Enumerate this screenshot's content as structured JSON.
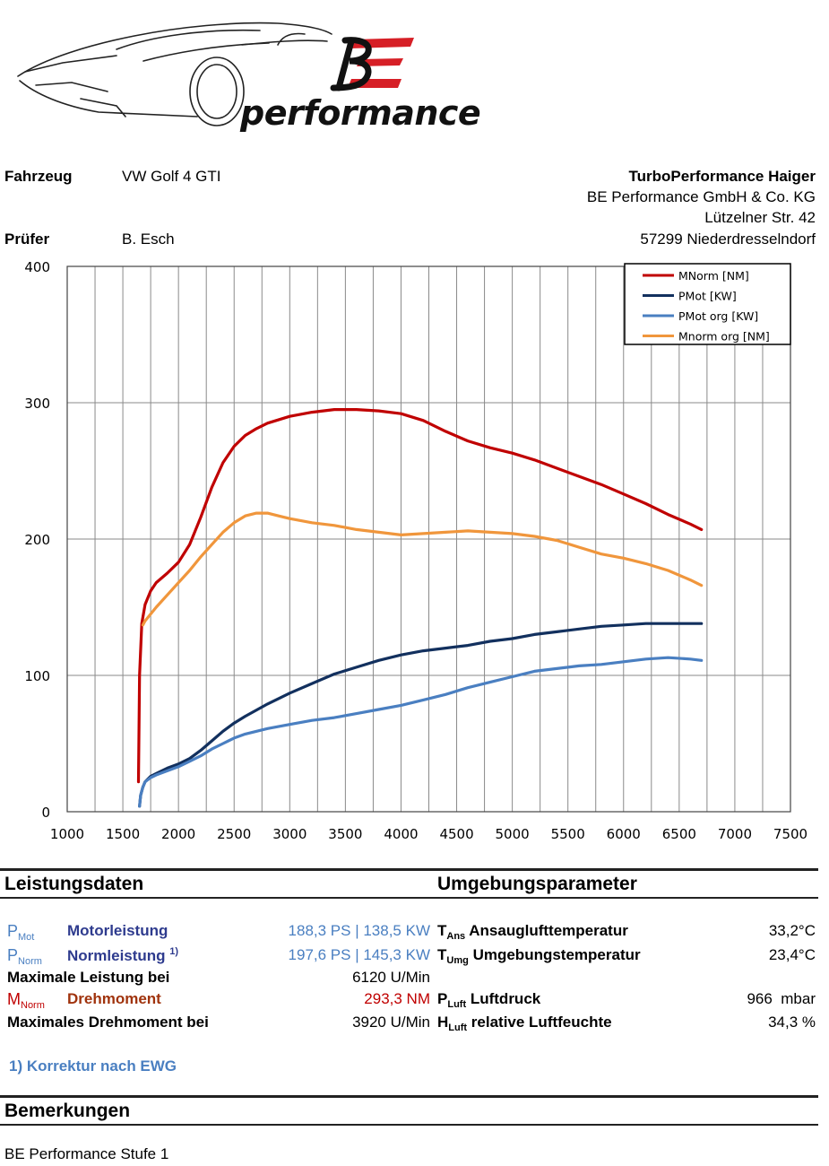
{
  "header": {
    "brand": "performance",
    "fahrzeug_label": "Fahrzeug",
    "fahrzeug_value": "VW Golf 4 GTI",
    "pruefer_label": "Prüfer",
    "pruefer_value": "B. Esch",
    "company_name": "TurboPerformance Haiger",
    "company_line2": "BE Performance GmbH & Co. KG",
    "company_line3": "Lützelner Str. 42",
    "company_line4": "57299 Niederdresselndorf"
  },
  "chart_data": {
    "type": "line",
    "xlim": [
      1000,
      7500
    ],
    "ylim": [
      0,
      400
    ],
    "x_ticks": [
      "1000",
      "1500",
      "2000",
      "2500",
      "3000",
      "3500",
      "4000",
      "4500",
      "5000",
      "5500",
      "6000",
      "6500",
      "7000",
      "7500"
    ],
    "y_ticks": [
      "0",
      "100",
      "200",
      "300",
      "400"
    ],
    "grid": true,
    "legend_position": "top-right",
    "series": [
      {
        "name": "MNorm [NM]",
        "color": "#c00000",
        "x": [
          1640,
          1650,
          1670,
          1700,
          1750,
          1800,
          1900,
          2000,
          2100,
          2200,
          2300,
          2400,
          2500,
          2600,
          2700,
          2800,
          3000,
          3200,
          3400,
          3600,
          3800,
          4000,
          4200,
          4400,
          4600,
          4800,
          5000,
          5200,
          5400,
          5600,
          5800,
          6000,
          6200,
          6400,
          6600,
          6700
        ],
        "y": [
          22,
          100,
          138,
          152,
          162,
          168,
          175,
          183,
          196,
          216,
          238,
          256,
          268,
          276,
          281,
          285,
          290,
          293,
          295,
          295,
          294,
          292,
          287,
          279,
          272,
          267,
          263,
          258,
          252,
          246,
          240,
          233,
          226,
          218,
          211,
          207
        ]
      },
      {
        "name": "PMot [KW]",
        "color": "#12305e",
        "x": [
          1650,
          1660,
          1680,
          1700,
          1750,
          1800,
          1900,
          2000,
          2100,
          2200,
          2300,
          2400,
          2500,
          2600,
          2800,
          3000,
          3200,
          3400,
          3600,
          3800,
          4000,
          4200,
          4400,
          4600,
          4800,
          5000,
          5200,
          5400,
          5600,
          5800,
          6000,
          6200,
          6400,
          6600,
          6700
        ],
        "y": [
          4,
          12,
          18,
          22,
          26,
          28,
          32,
          35,
          39,
          45,
          52,
          59,
          65,
          70,
          79,
          87,
          94,
          101,
          106,
          111,
          115,
          118,
          120,
          122,
          125,
          127,
          130,
          132,
          134,
          136,
          137,
          138,
          138,
          138,
          138
        ]
      },
      {
        "name": "PMot org [KW]",
        "color": "#4a7fc1",
        "x": [
          1650,
          1660,
          1680,
          1700,
          1750,
          1800,
          1900,
          2000,
          2100,
          2200,
          2300,
          2400,
          2500,
          2600,
          2800,
          3000,
          3200,
          3400,
          3600,
          3800,
          4000,
          4200,
          4400,
          4600,
          4800,
          5000,
          5200,
          5400,
          5600,
          5800,
          6000,
          6200,
          6400,
          6600,
          6700
        ],
        "y": [
          4,
          12,
          18,
          22,
          25,
          27,
          30,
          33,
          37,
          41,
          46,
          50,
          54,
          57,
          61,
          64,
          67,
          69,
          72,
          75,
          78,
          82,
          86,
          91,
          95,
          99,
          103,
          105,
          107,
          108,
          110,
          112,
          113,
          112,
          111
        ]
      },
      {
        "name": "Mnorm org [NM]",
        "color": "#f0963c",
        "x": [
          1680,
          1700,
          1800,
          1900,
          2000,
          2100,
          2200,
          2300,
          2400,
          2500,
          2600,
          2700,
          2800,
          2900,
          3000,
          3200,
          3400,
          3600,
          3800,
          4000,
          4200,
          4400,
          4600,
          4800,
          5000,
          5200,
          5400,
          5600,
          5800,
          6000,
          6200,
          6400,
          6600,
          6700
        ],
        "y": [
          137,
          140,
          150,
          159,
          168,
          177,
          187,
          196,
          205,
          212,
          217,
          219,
          219,
          217,
          215,
          212,
          210,
          207,
          205,
          203,
          204,
          205,
          206,
          205,
          204,
          202,
          199,
          194,
          189,
          186,
          182,
          177,
          170,
          166
        ]
      }
    ]
  },
  "performance": {
    "section_title": "Leistungsdaten",
    "pmot_sym": "P",
    "pmot_sub": "Mot",
    "pmot_label": "Motorleistung",
    "pmot_value": "188,3 PS | 138,5 KW",
    "pnorm_sym": "P",
    "pnorm_sub": "Norm",
    "pnorm_label": "Normleistung",
    "pnorm_sup": "1)",
    "pnorm_value": "197,6 PS | 145,3 KW",
    "maxp_label": "Maximale Leistung bei",
    "maxp_value": "6120 U/Min",
    "mnorm_sym": "M",
    "mnorm_sub": "Norm",
    "mnorm_label": "Drehmoment",
    "mnorm_value": "293,3 NM",
    "maxm_label": "Maximales Drehmoment bei",
    "maxm_value": "3920 U/Min",
    "footnote": "1) Korrektur nach EWG"
  },
  "environment": {
    "section_title": "Umgebungsparameter",
    "tans_sym": "T",
    "tans_sub": "Ans",
    "tans_label": "Ansauglufttemperatur",
    "tans_value": "33,2°C",
    "tumg_sym": "T",
    "tumg_sub": "Umg",
    "tumg_label": "Umgebungstemperatur",
    "tumg_value": "23,4°C",
    "pluft_sym": "P",
    "pluft_sub": "Luft",
    "pluft_label": "Luftdruck",
    "pluft_value": "966  mbar",
    "hluft_sym": "H",
    "hluft_sub": "Luft",
    "hluft_label": "relative Luftfeuchte",
    "hluft_value": "34,3 %"
  },
  "remarks": {
    "section_title": "Bemerkungen",
    "text": "BE Performance Stufe 1"
  }
}
